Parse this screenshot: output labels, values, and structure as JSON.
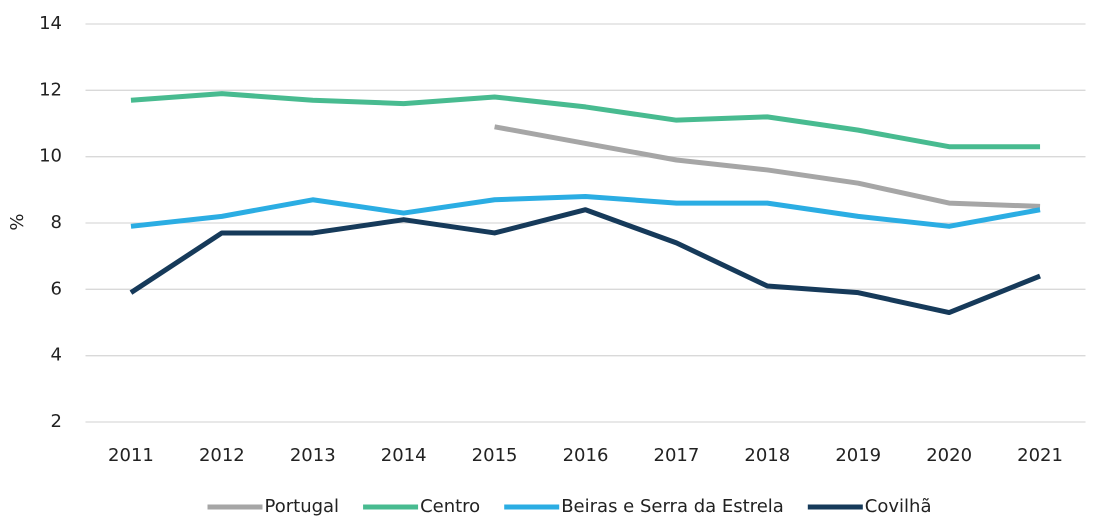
{
  "chart_data": {
    "type": "line",
    "y_label": "%",
    "categories": [
      "2011",
      "2012",
      "2013",
      "2014",
      "2015",
      "2016",
      "2017",
      "2018",
      "2019",
      "2020",
      "2021"
    ],
    "series": [
      {
        "name": "Portugal",
        "color": "#a6a6a6",
        "values": [
          null,
          null,
          null,
          null,
          10.9,
          10.4,
          9.9,
          9.6,
          9.2,
          8.6,
          8.5
        ]
      },
      {
        "name": "Centro",
        "color": "#48bb90",
        "values": [
          11.7,
          11.9,
          11.7,
          11.6,
          11.8,
          11.5,
          11.1,
          11.2,
          10.8,
          10.3,
          10.3
        ]
      },
      {
        "name": "Beiras e Serra da Estrela",
        "color": "#2badE3",
        "values": [
          7.9,
          8.2,
          8.7,
          8.3,
          8.7,
          8.8,
          8.6,
          8.6,
          8.2,
          7.9,
          8.4
        ]
      },
      {
        "name": "Covilhã",
        "color": "#163a5a",
        "values": [
          5.9,
          7.7,
          7.7,
          8.1,
          7.7,
          8.4,
          7.4,
          6.1,
          5.9,
          5.3,
          6.4
        ]
      }
    ],
    "ylim": [
      2,
      14
    ],
    "yticks": [
      2,
      4,
      6,
      8,
      10,
      12,
      14
    ],
    "grid": true,
    "legend": "bottom"
  }
}
